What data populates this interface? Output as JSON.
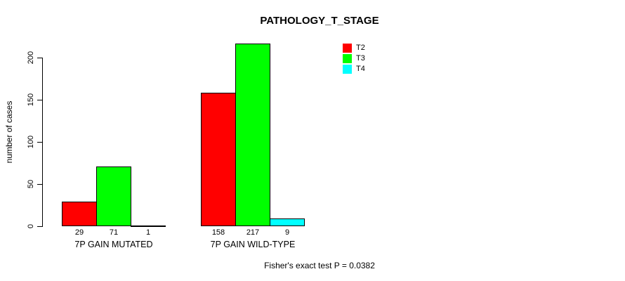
{
  "chart_data": {
    "type": "bar",
    "grouped": true,
    "title": "PATHOLOGY_T_STAGE",
    "ylabel": "number of cases",
    "xlabel": "",
    "annotation": "Fisher's exact test P = 0.0382",
    "categories": [
      "7P GAIN MUTATED",
      "7P GAIN WILD-TYPE"
    ],
    "series": [
      {
        "name": "T2",
        "color": "#ff0000",
        "values": [
          29,
          158
        ]
      },
      {
        "name": "T3",
        "color": "#00ff00",
        "values": [
          71,
          217
        ]
      },
      {
        "name": "T4",
        "color": "#00ffff",
        "values": [
          1,
          9
        ]
      }
    ],
    "bar_value_labels": [
      [
        "29",
        "71",
        "1"
      ],
      [
        "158",
        "217",
        "9"
      ]
    ],
    "yticks": [
      0,
      50,
      100,
      150,
      200
    ],
    "ylim": [
      0,
      240
    ],
    "grid": "off",
    "legend_position": "top-right"
  },
  "colors": {
    "axis": "#000000",
    "text": "#000000",
    "background": "#ffffff"
  }
}
